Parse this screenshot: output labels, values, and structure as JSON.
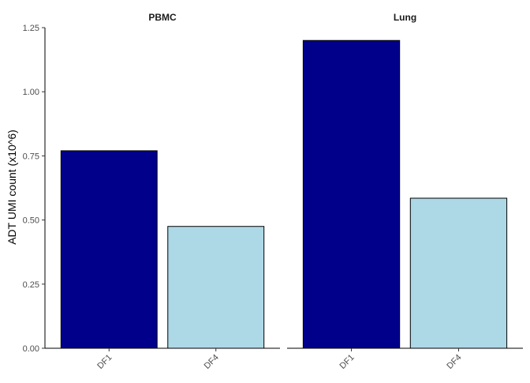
{
  "chart_data": {
    "type": "bar",
    "ylabel": "ADT UMI count (x10^6)",
    "xlabel": "",
    "ylim": [
      0,
      1.25
    ],
    "yticks": [
      "0.00",
      "0.25",
      "0.50",
      "0.75",
      "1.00",
      "1.25"
    ],
    "yticks_values": [
      0,
      0.25,
      0.5,
      0.75,
      1.0,
      1.25
    ],
    "grid": false,
    "legend": "none",
    "colors": {
      "DF1": "#00008b",
      "DF4": "#add8e6"
    },
    "facets": [
      {
        "title": "PBMC",
        "categories": [
          "DF1",
          "DF4"
        ],
        "values": [
          0.77,
          0.475
        ]
      },
      {
        "title": "Lung",
        "categories": [
          "DF1",
          "DF4"
        ],
        "values": [
          1.2,
          0.585
        ]
      }
    ]
  }
}
